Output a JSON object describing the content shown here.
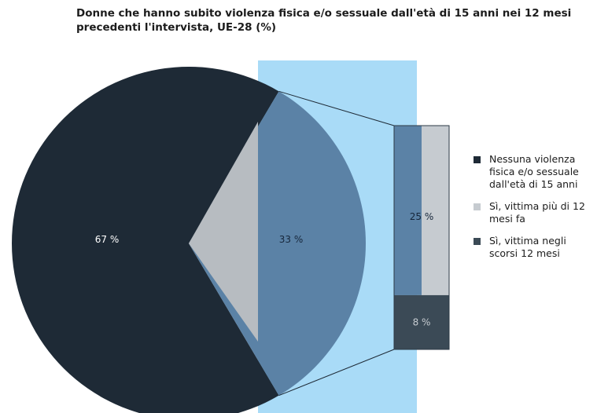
{
  "chart_data": {
    "type": "pie",
    "title": "Donne che hanno subito violenza fisica e/o sessuale dall'età di 15 anni nei 12 mesi precedenti l'intervista, UE-28 (%)",
    "pie": {
      "slices": [
        {
          "label": "Nessuna violenza fisica e/o sessuale dall'età di 15 anni",
          "value": 67,
          "data_label": "67 %",
          "color": "#1e2a36"
        },
        {
          "label": "Sì, vittima",
          "value": 33,
          "data_label": "33 %",
          "color": "#5b82a6"
        }
      ]
    },
    "breakdown": {
      "of_slice": "33 %",
      "segments": [
        {
          "label": "Sì, vittima più di 12 mesi fa",
          "value": 25,
          "data_label": "25 %",
          "color": "#c6cbd0"
        },
        {
          "label": "Sì, vittima negli scorsi 12 mesi",
          "value": 8,
          "data_label": "8 %",
          "color": "#3b4a56"
        }
      ]
    },
    "legend": {
      "position": "right",
      "items": [
        {
          "label": "Nessuna violenza fisica e/o sessuale dall'età di 15 anni",
          "color": "#1e2a36"
        },
        {
          "label": "Sì, vittima più di 12 mesi fa",
          "color": "#c6cbd0"
        },
        {
          "label": "Sì, vittima negli scorsi 12 mesi",
          "color": "#3b4a56"
        }
      ]
    },
    "highlight_color": "#a9dbf7",
    "neutral_color": "#b7bcc1"
  }
}
